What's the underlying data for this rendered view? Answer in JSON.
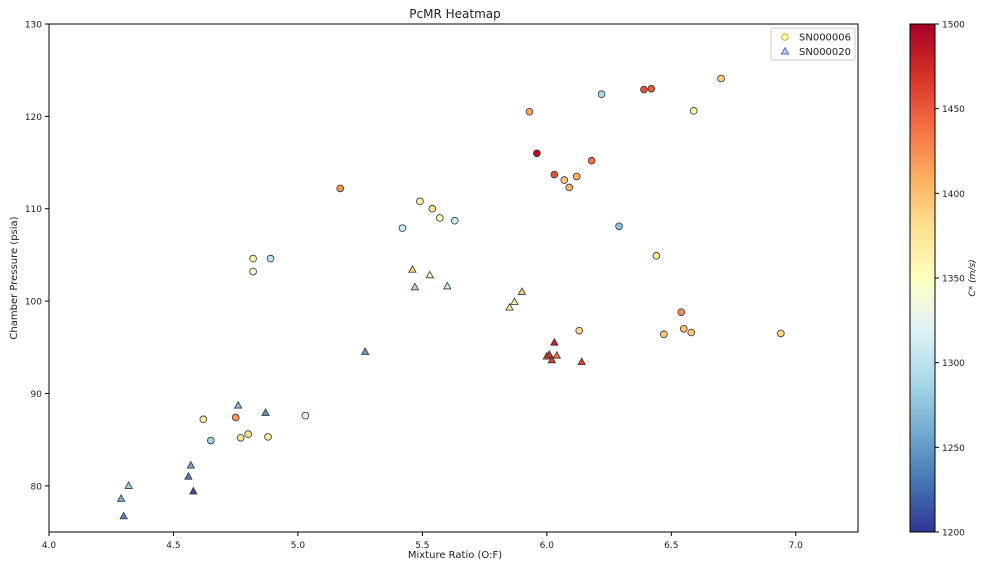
{
  "chart_data": {
    "type": "scatter",
    "title": "PcMR Heatmap",
    "xlabel": "Mixture Ratio (O:F)",
    "ylabel": "Chamber Pressure (psia)",
    "xlim": [
      4.0,
      7.25
    ],
    "ylim": [
      75,
      130
    ],
    "xticks": [
      4.0,
      4.5,
      5.0,
      5.5,
      6.0,
      6.5,
      7.0
    ],
    "xtick_labels": [
      "4.0",
      "4.5",
      "5.0",
      "5.5",
      "6.0",
      "6.5",
      "7.0"
    ],
    "yticks": [
      80,
      90,
      100,
      110,
      120,
      130
    ],
    "ytick_labels": [
      "80",
      "90",
      "100",
      "110",
      "120",
      "130"
    ],
    "grid": false,
    "legend_position": "top-right",
    "colorbar": {
      "label": "C* (m/s)",
      "range": [
        1200,
        1500
      ],
      "ticks": [
        1200,
        1250,
        1300,
        1350,
        1400,
        1450,
        1500
      ],
      "tick_labels": [
        "1200",
        "1250",
        "1300",
        "1350",
        "1400",
        "1450",
        "1500"
      ],
      "colormap": "RdYlBu_r"
    },
    "series": [
      {
        "name": "SN000006",
        "marker": "circle",
        "points": [
          {
            "x": 4.62,
            "y": 87.2,
            "c": 1370
          },
          {
            "x": 4.65,
            "y": 84.9,
            "c": 1285
          },
          {
            "x": 4.75,
            "y": 87.4,
            "c": 1420
          },
          {
            "x": 4.77,
            "y": 85.2,
            "c": 1375
          },
          {
            "x": 4.8,
            "y": 85.6,
            "c": 1378
          },
          {
            "x": 4.82,
            "y": 104.6,
            "c": 1365
          },
          {
            "x": 4.82,
            "y": 103.2,
            "c": 1345
          },
          {
            "x": 4.88,
            "y": 85.3,
            "c": 1372
          },
          {
            "x": 4.89,
            "y": 104.6,
            "c": 1300
          },
          {
            "x": 5.03,
            "y": 87.6,
            "c": 1320
          },
          {
            "x": 5.17,
            "y": 112.2,
            "c": 1420
          },
          {
            "x": 5.42,
            "y": 107.9,
            "c": 1308
          },
          {
            "x": 5.49,
            "y": 110.8,
            "c": 1365
          },
          {
            "x": 5.54,
            "y": 110.0,
            "c": 1380
          },
          {
            "x": 5.57,
            "y": 109.0,
            "c": 1355
          },
          {
            "x": 5.63,
            "y": 108.7,
            "c": 1310
          },
          {
            "x": 5.93,
            "y": 120.5,
            "c": 1415
          },
          {
            "x": 5.96,
            "y": 116.0,
            "c": 1490
          },
          {
            "x": 6.03,
            "y": 113.7,
            "c": 1455
          },
          {
            "x": 6.07,
            "y": 113.1,
            "c": 1395
          },
          {
            "x": 6.09,
            "y": 112.3,
            "c": 1405
          },
          {
            "x": 6.12,
            "y": 113.5,
            "c": 1410
          },
          {
            "x": 6.13,
            "y": 96.8,
            "c": 1385
          },
          {
            "x": 6.18,
            "y": 115.2,
            "c": 1440
          },
          {
            "x": 6.22,
            "y": 122.4,
            "c": 1290
          },
          {
            "x": 6.29,
            "y": 108.1,
            "c": 1275
          },
          {
            "x": 6.39,
            "y": 122.9,
            "c": 1455
          },
          {
            "x": 6.42,
            "y": 123.0,
            "c": 1450
          },
          {
            "x": 6.44,
            "y": 104.9,
            "c": 1375
          },
          {
            "x": 6.47,
            "y": 96.4,
            "c": 1395
          },
          {
            "x": 6.54,
            "y": 98.8,
            "c": 1425
          },
          {
            "x": 6.55,
            "y": 97.0,
            "c": 1400
          },
          {
            "x": 6.58,
            "y": 96.6,
            "c": 1395
          },
          {
            "x": 6.59,
            "y": 120.6,
            "c": 1360
          },
          {
            "x": 6.7,
            "y": 124.1,
            "c": 1390
          },
          {
            "x": 6.94,
            "y": 96.5,
            "c": 1385
          }
        ]
      },
      {
        "name": "SN000020",
        "marker": "triangle",
        "points": [
          {
            "x": 4.29,
            "y": 78.6,
            "c": 1262
          },
          {
            "x": 4.3,
            "y": 76.7,
            "c": 1240
          },
          {
            "x": 4.32,
            "y": 80.0,
            "c": 1285
          },
          {
            "x": 4.56,
            "y": 81.0,
            "c": 1235
          },
          {
            "x": 4.57,
            "y": 82.2,
            "c": 1255
          },
          {
            "x": 4.58,
            "y": 79.4,
            "c": 1210
          },
          {
            "x": 4.76,
            "y": 88.7,
            "c": 1270
          },
          {
            "x": 4.87,
            "y": 87.9,
            "c": 1245
          },
          {
            "x": 5.27,
            "y": 94.5,
            "c": 1250
          },
          {
            "x": 5.46,
            "y": 103.4,
            "c": 1390
          },
          {
            "x": 5.47,
            "y": 101.5,
            "c": 1295
          },
          {
            "x": 5.53,
            "y": 102.8,
            "c": 1355
          },
          {
            "x": 5.6,
            "y": 101.6,
            "c": 1310
          },
          {
            "x": 5.85,
            "y": 99.3,
            "c": 1375
          },
          {
            "x": 5.87,
            "y": 99.9,
            "c": 1362
          },
          {
            "x": 5.9,
            "y": 101.0,
            "c": 1395
          },
          {
            "x": 6.0,
            "y": 94.0,
            "c": 1455
          },
          {
            "x": 6.01,
            "y": 94.2,
            "c": 1470
          },
          {
            "x": 6.02,
            "y": 93.6,
            "c": 1465
          },
          {
            "x": 6.03,
            "y": 95.5,
            "c": 1480
          },
          {
            "x": 6.04,
            "y": 94.1,
            "c": 1440
          },
          {
            "x": 6.14,
            "y": 93.4,
            "c": 1460
          }
        ]
      }
    ]
  }
}
